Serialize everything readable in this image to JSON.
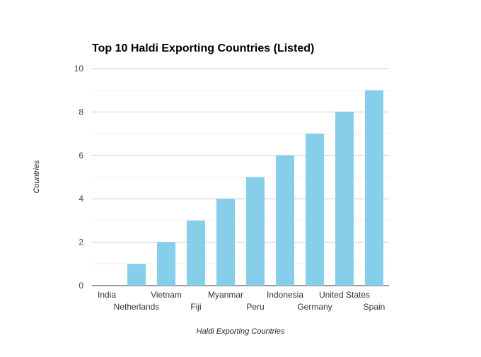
{
  "chart_data": {
    "type": "bar",
    "title": "Top 10 Haldi Exporting Countries (Listed)",
    "xlabel": "Haldi Exporting Countries",
    "ylabel": "Countries",
    "categories": [
      "India",
      "Netherlands",
      "Vietnam",
      "Fiji",
      "Myanmar",
      "Peru",
      "Indonesia",
      "Germany",
      "United States",
      "Spain"
    ],
    "values": [
      0,
      1,
      2,
      3,
      4,
      5,
      6,
      7,
      8,
      9
    ],
    "ylim": [
      0,
      10
    ],
    "yticks": [
      "0",
      "2",
      "4",
      "6",
      "8",
      "10"
    ],
    "minor_gridlines": true,
    "grid": true,
    "legend": "none",
    "colors": {
      "bar": "#87ceeb",
      "major_grid": "#cccccc",
      "minor_grid": "#eeeeee",
      "baseline": "#333333"
    }
  }
}
